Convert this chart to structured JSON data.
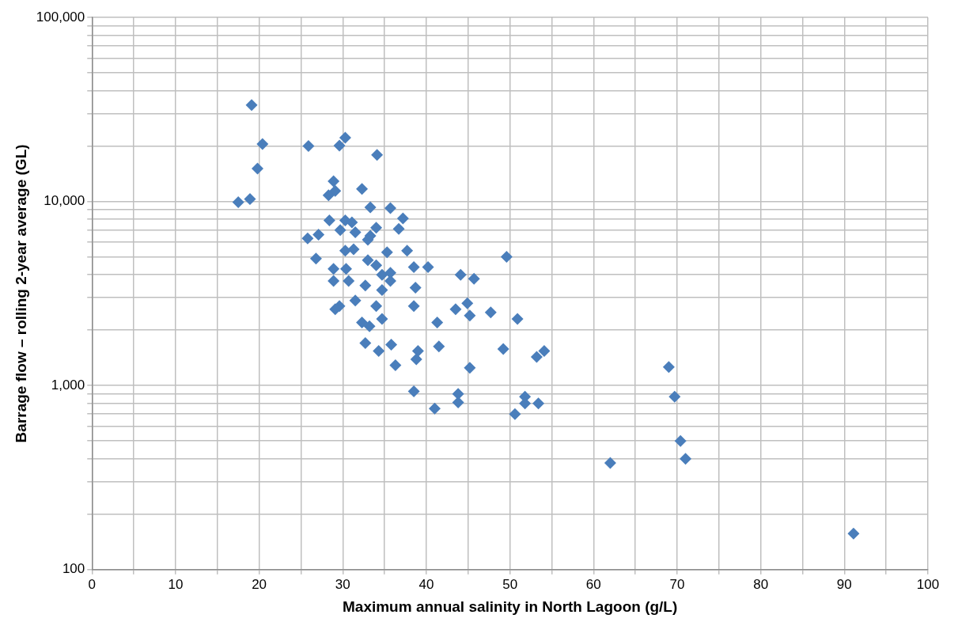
{
  "chart_data": {
    "type": "scatter",
    "xlabel": "Maximum annual salinity in North Lagoon (g/L)",
    "ylabel": "Barrage flow – rolling 2-year average (GL)",
    "log": "y",
    "grid": true,
    "legend": false,
    "marker": "diamond",
    "xlim": [
      0,
      100
    ],
    "xticks": [
      0,
      {
        "value": 5,
        "label": null
      },
      10,
      {
        "value": 15,
        "label": null
      },
      20,
      {
        "value": 25,
        "label": null
      },
      30,
      {
        "value": 35,
        "label": null
      },
      40,
      {
        "value": 45,
        "label": null
      },
      50,
      {
        "value": 55,
        "label": null
      },
      60,
      {
        "value": 65,
        "label": null
      },
      70,
      {
        "value": 75,
        "label": null
      },
      80,
      {
        "value": 85,
        "label": null
      },
      90,
      {
        "value": 95,
        "label": null
      },
      100
    ],
    "ylim": [
      100,
      100000
    ],
    "yticks": [
      100,
      {
        "value": 200,
        "label": null
      },
      {
        "value": 300,
        "label": null
      },
      {
        "value": 400,
        "label": null
      },
      {
        "value": 500,
        "label": null
      },
      {
        "value": 600,
        "label": null
      },
      {
        "value": 700,
        "label": null
      },
      {
        "value": 800,
        "label": null
      },
      {
        "value": 900,
        "label": null
      },
      {
        "value": 1000,
        "label": "1,000"
      },
      {
        "value": 2000,
        "label": null
      },
      {
        "value": 3000,
        "label": null
      },
      {
        "value": 4000,
        "label": null
      },
      {
        "value": 5000,
        "label": null
      },
      {
        "value": 6000,
        "label": null
      },
      {
        "value": 7000,
        "label": null
      },
      {
        "value": 8000,
        "label": null
      },
      {
        "value": 9000,
        "label": null
      },
      {
        "value": 10000,
        "label": "10,000"
      },
      {
        "value": 20000,
        "label": null
      },
      {
        "value": 30000,
        "label": null
      },
      {
        "value": 40000,
        "label": null
      },
      {
        "value": 50000,
        "label": null
      },
      {
        "value": 60000,
        "label": null
      },
      {
        "value": 70000,
        "label": null
      },
      {
        "value": 80000,
        "label": null
      },
      {
        "value": 90000,
        "label": null
      },
      {
        "value": 100000,
        "label": "100,000"
      }
    ],
    "series": [
      {
        "color": "#4a7ebb",
        "x": [
          17.5,
          18.9,
          19.1,
          19.8,
          20.4,
          25.9,
          29.6,
          30.3,
          34.1,
          28.9,
          29.1,
          28.3,
          32.3,
          33.3,
          35.7,
          37.2,
          36.7,
          25.8,
          27.1,
          28.4,
          30.3,
          31.1,
          29.7,
          31.5,
          34.0,
          33.3,
          26.8,
          30.3,
          31.3,
          33.0,
          35.3,
          28.9,
          30.4,
          33.0,
          34.0,
          38.5,
          40.2,
          28.9,
          30.7,
          32.7,
          34.7,
          35.7,
          34.7,
          35.7,
          38.7,
          44.1,
          45.7,
          49.6,
          37.7,
          31.5,
          29.6,
          29.1,
          34.0,
          34.7,
          38.5,
          41.3,
          43.5,
          44.9,
          45.2,
          47.7,
          50.9,
          32.3,
          33.2,
          32.7,
          34.3,
          35.8,
          39.0,
          38.8,
          36.3,
          41.5,
          45.2,
          49.2,
          53.2,
          54.1,
          69.0,
          69.7,
          38.5,
          43.8,
          43.8,
          41.0,
          50.6,
          51.8,
          51.8,
          53.4,
          70.4,
          71.0,
          62.0,
          91.1
        ],
        "values": [
          9900,
          10300,
          33400,
          15100,
          20500,
          20000,
          20100,
          22200,
          17900,
          12900,
          11400,
          10800,
          11700,
          9300,
          9200,
          8100,
          7100,
          6300,
          6600,
          7900,
          7900,
          7700,
          7000,
          6800,
          7200,
          6500,
          4900,
          5400,
          5500,
          6200,
          5300,
          4300,
          4300,
          4800,
          4500,
          4400,
          4400,
          3700,
          3700,
          3500,
          4000,
          4100,
          3300,
          3700,
          3400,
          4000,
          3800,
          5000,
          5400,
          2900,
          2700,
          2600,
          2700,
          2300,
          2700,
          2200,
          2600,
          2800,
          2400,
          2500,
          2300,
          2200,
          2100,
          1700,
          1540,
          1670,
          1540,
          1390,
          1290,
          1630,
          1250,
          1580,
          1430,
          1540,
          1260,
          870,
          930,
          900,
          810,
          750,
          700,
          870,
          800,
          800,
          500,
          400,
          380,
          157
        ]
      }
    ]
  }
}
